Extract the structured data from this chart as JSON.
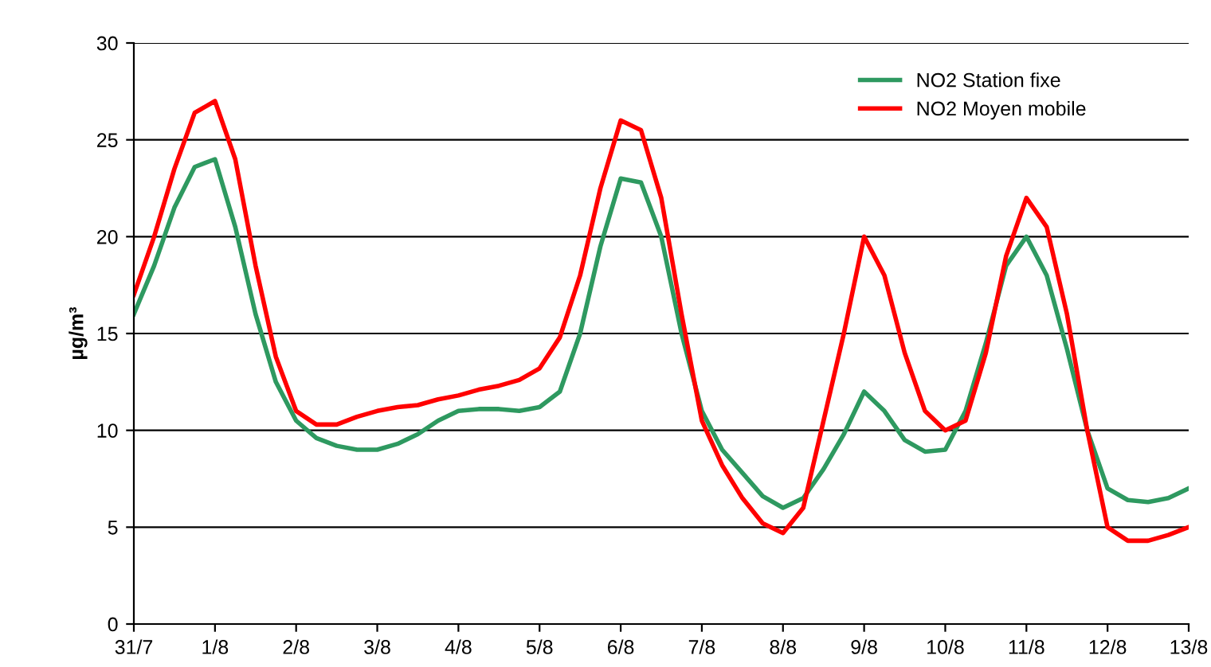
{
  "chart_data": {
    "type": "line",
    "ylabel": "µg/m³",
    "categories": [
      "31/7",
      null,
      null,
      null,
      "1/8",
      null,
      null,
      null,
      "2/8",
      null,
      null,
      null,
      "3/8",
      null,
      null,
      null,
      "4/8",
      null,
      null,
      null,
      "5/8",
      null,
      null,
      null,
      "6/8",
      null,
      null,
      null,
      "7/8",
      null,
      null,
      null,
      "8/8",
      null,
      null,
      null,
      "9/8",
      null,
      null,
      null,
      "10/8",
      null,
      null,
      null,
      "11/8",
      null,
      null,
      null,
      "12/8",
      null,
      null,
      null,
      "13/8"
    ],
    "series": [
      {
        "name": "NO2 Station fixe",
        "color": "#2e9960",
        "values": [
          16,
          18.5,
          21.5,
          23.6,
          24,
          20.5,
          16,
          12.5,
          10.5,
          9.6,
          9.2,
          9,
          9,
          9.3,
          9.8,
          10.5,
          11,
          11.1,
          11.1,
          11,
          11.2,
          12,
          15,
          19.5,
          23,
          22.8,
          20,
          15,
          11,
          9,
          7.8,
          6.6,
          6,
          6.5,
          8,
          9.8,
          12,
          11,
          9.5,
          8.9,
          9,
          11,
          14.5,
          18.5,
          20,
          18,
          14.2,
          10,
          7,
          6.4,
          6.3,
          6.5,
          7
        ]
      },
      {
        "name": "NO2 Moyen mobile",
        "color": "#ff0000",
        "values": [
          17,
          20,
          23.5,
          26.4,
          27,
          24,
          18.5,
          13.8,
          11,
          10.3,
          10.3,
          10.7,
          11,
          11.2,
          11.3,
          11.6,
          11.8,
          12.1,
          12.3,
          12.6,
          13.2,
          14.8,
          18,
          22.5,
          26,
          25.5,
          22,
          16,
          10.5,
          8.2,
          6.5,
          5.2,
          4.7,
          6,
          10.5,
          15,
          20,
          18,
          14,
          11,
          10,
          10.5,
          14,
          19,
          22,
          20.5,
          16,
          10,
          5,
          4.3,
          4.3,
          4.6,
          5
        ]
      }
    ],
    "ylim": [
      0,
      30
    ],
    "yticks": [
      0,
      5,
      10,
      15,
      20,
      25,
      30
    ],
    "grid": "y",
    "legend": "top right",
    "marker": "none",
    "line_style": "solid"
  }
}
